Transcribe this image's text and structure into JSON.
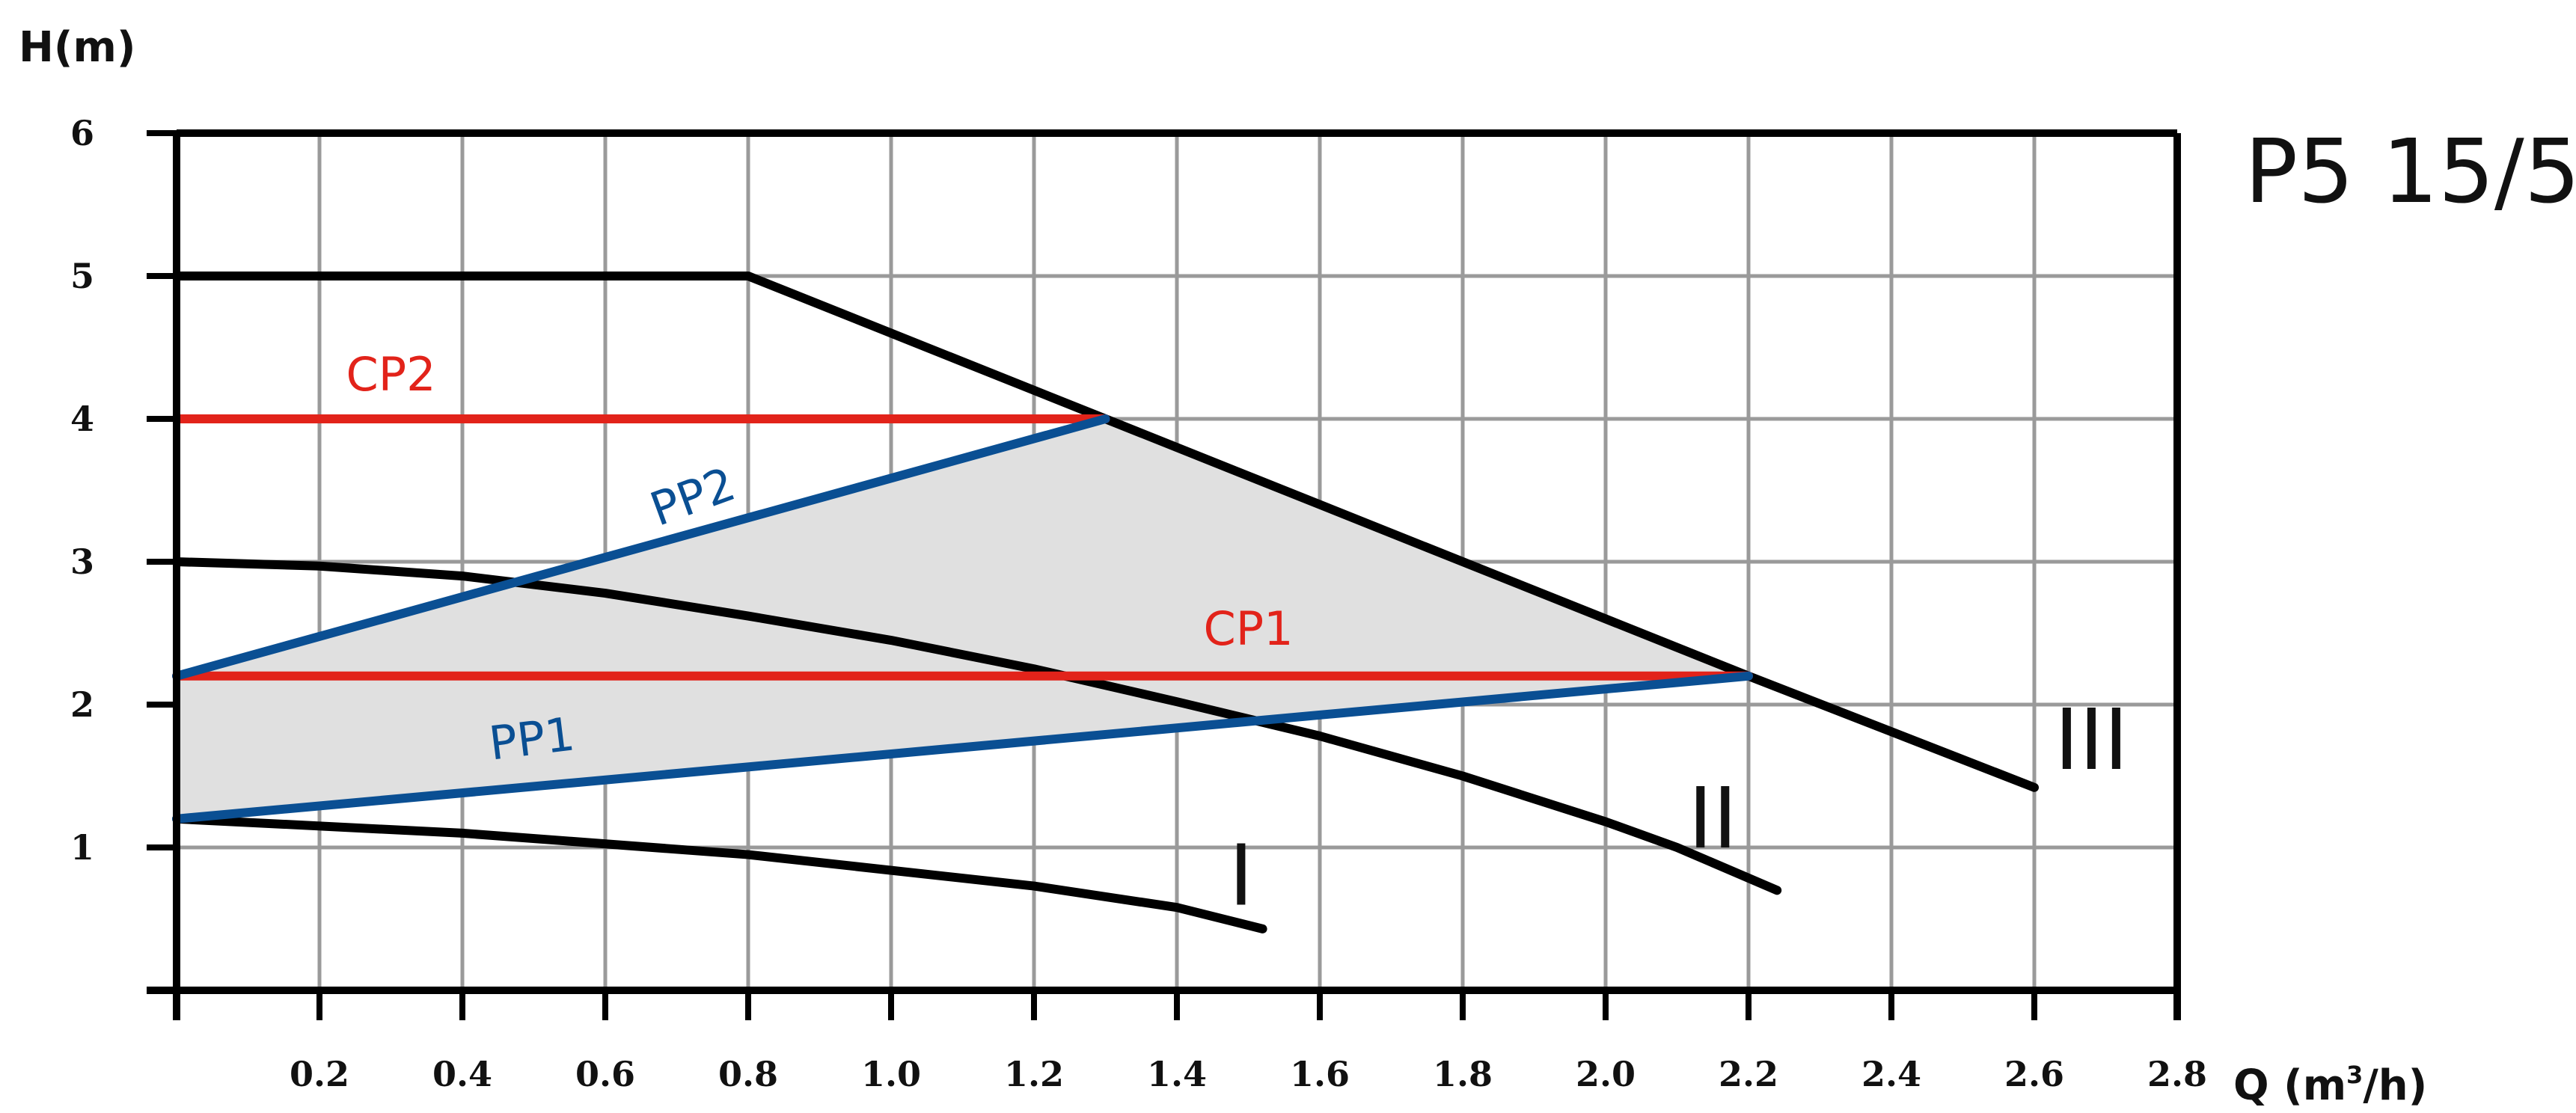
{
  "chart_data": {
    "type": "line",
    "title": "P5 15/5",
    "ylabel": "H(m)",
    "xlabel": "Q (m³/h)",
    "xlabel_main": "Q (m",
    "xlabel_sup": "3",
    "xlabel_end": "/h)",
    "xlim": [
      0,
      2.8
    ],
    "ylim": [
      0,
      6
    ],
    "grid": true,
    "x_ticks": [
      "0.2",
      "0.4",
      "0.6",
      "0.8",
      "1.0",
      "1.2",
      "1.4",
      "1.6",
      "1.8",
      "2.0",
      "2.2",
      "2.4",
      "2.6",
      "2.8"
    ],
    "y_ticks": [
      "1",
      "2",
      "3",
      "4",
      "5",
      "6"
    ],
    "shaded_region": [
      [
        0,
        2.2
      ],
      [
        1.3,
        4.0
      ],
      [
        2.2,
        2.2
      ],
      [
        0,
        1.2
      ]
    ],
    "series": [
      {
        "name": "III",
        "color": "#000000",
        "points": [
          [
            0,
            5
          ],
          [
            0.8,
            5
          ],
          [
            1.3,
            4.0
          ],
          [
            2.2,
            2.2
          ],
          [
            2.6,
            1.42
          ]
        ]
      },
      {
        "name": "II",
        "color": "#000000",
        "points": [
          [
            0,
            3.0
          ],
          [
            0.2,
            2.97
          ],
          [
            0.4,
            2.9
          ],
          [
            0.6,
            2.78
          ],
          [
            0.8,
            2.62
          ],
          [
            1.0,
            2.45
          ],
          [
            1.2,
            2.25
          ],
          [
            1.4,
            2.02
          ],
          [
            1.6,
            1.78
          ],
          [
            1.8,
            1.5
          ],
          [
            2.0,
            1.18
          ],
          [
            2.1,
            1.0
          ],
          [
            2.24,
            0.7
          ]
        ]
      },
      {
        "name": "I",
        "color": "#000000",
        "points": [
          [
            0,
            1.2
          ],
          [
            0.4,
            1.1
          ],
          [
            0.8,
            0.95
          ],
          [
            1.2,
            0.73
          ],
          [
            1.4,
            0.58
          ],
          [
            1.52,
            0.43
          ]
        ]
      },
      {
        "name": "CP2",
        "color": "#e2231a",
        "points": [
          [
            0,
            4.0
          ],
          [
            1.3,
            4.0
          ]
        ]
      },
      {
        "name": "CP1",
        "color": "#e2231a",
        "points": [
          [
            0,
            2.2
          ],
          [
            2.2,
            2.2
          ]
        ]
      },
      {
        "name": "PP2",
        "color": "#0a4f93",
        "points": [
          [
            0,
            2.2
          ],
          [
            1.3,
            4.0
          ]
        ]
      },
      {
        "name": "PP1",
        "color": "#0a4f93",
        "points": [
          [
            0,
            1.2
          ],
          [
            2.2,
            2.2
          ]
        ]
      }
    ],
    "annotations": [
      {
        "text": "CP2",
        "x": 0.3,
        "y": 4.2,
        "color": "#e2231a",
        "rotate": 0
      },
      {
        "text": "CP1",
        "x": 1.5,
        "y": 2.42,
        "color": "#e2231a",
        "rotate": 0
      },
      {
        "text": "PP2",
        "x": 0.73,
        "y": 3.35,
        "color": "#0a4f93",
        "rotate": -20
      },
      {
        "text": "PP1",
        "x": 0.5,
        "y": 1.65,
        "color": "#0a4f93",
        "rotate": -7
      },
      {
        "text": "I",
        "x": 1.49,
        "y": 0.6,
        "color": "#111111",
        "rotate": 0
      },
      {
        "text": "II",
        "x": 2.15,
        "y": 1.0,
        "color": "#111111",
        "rotate": 0
      },
      {
        "text": "III",
        "x": 2.68,
        "y": 1.55,
        "color": "#111111",
        "rotate": 0
      }
    ]
  }
}
